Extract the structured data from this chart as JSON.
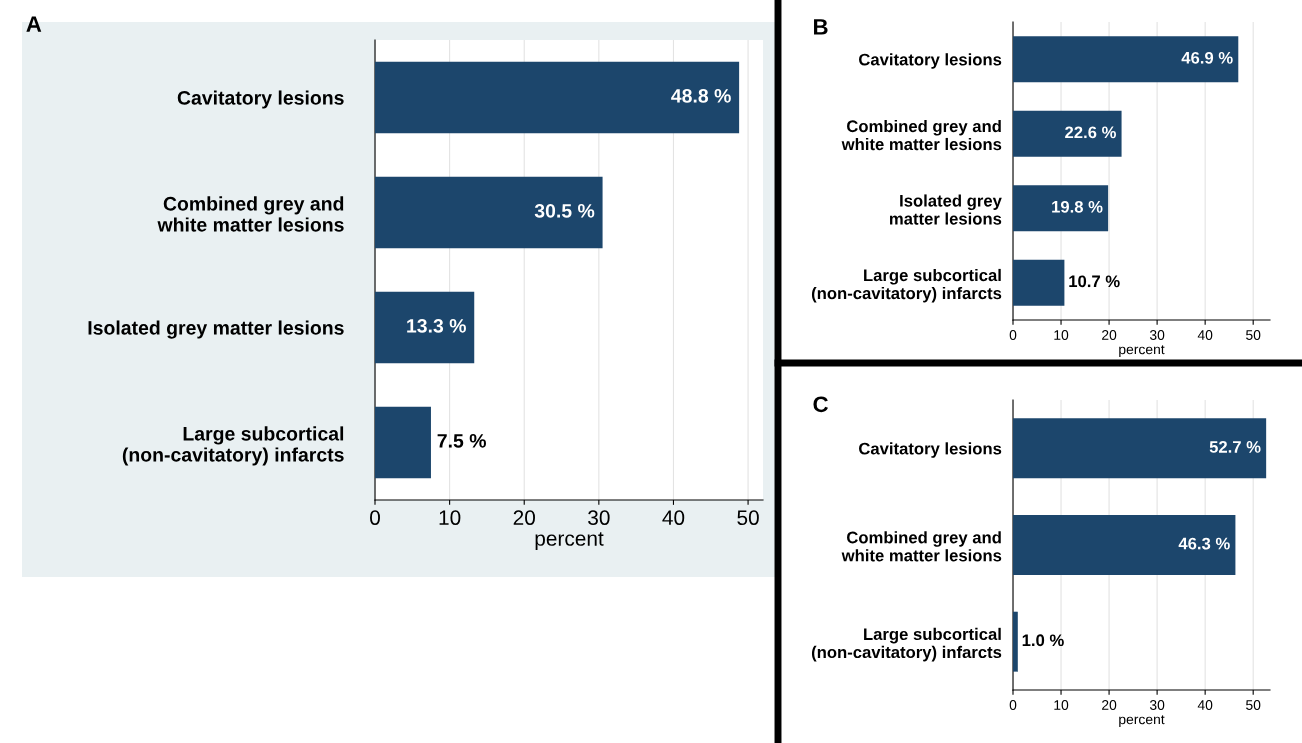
{
  "chart_data": [
    {
      "type": "bar",
      "orientation": "horizontal",
      "title": "A",
      "xlabel": "percent",
      "categories": [
        "Cavitatory lesions",
        "Combined grey and\nwhite matter lesions",
        "Isolated grey matter lesions",
        "Large subcortical\n(non-cavitatory) infarcts"
      ],
      "values": [
        48.8,
        30.5,
        13.3,
        7.5
      ],
      "value_labels": [
        "48.8 %",
        "30.5 %",
        "13.3 %",
        "7.5 %"
      ],
      "color": "#1c466c",
      "xlim": [
        0,
        52
      ],
      "xticks": [
        0,
        10,
        20,
        30,
        40,
        50
      ],
      "grid": "x"
    },
    {
      "type": "bar",
      "orientation": "horizontal",
      "title": "B",
      "xlabel": "percent",
      "categories": [
        "Cavitatory lesions",
        "Combined grey and\nwhite matter lesions",
        "Isolated grey\nmatter lesions",
        "Large subcortical\n(non-cavitatory) infarcts"
      ],
      "values": [
        46.9,
        22.6,
        19.8,
        10.7
      ],
      "value_labels": [
        "46.9 %",
        "22.6 %",
        "19.8 %",
        "10.7 %"
      ],
      "color": "#1c466c",
      "xlim": [
        0,
        53.5
      ],
      "xticks": [
        0,
        10,
        20,
        30,
        40,
        50
      ],
      "grid": "x"
    },
    {
      "type": "bar",
      "orientation": "horizontal",
      "title": "C",
      "xlabel": "percent",
      "categories": [
        "Cavitatory lesions",
        "Combined grey and\nwhite matter lesions",
        "Large subcortical\n(non-cavitatory) infarcts"
      ],
      "values": [
        52.7,
        46.3,
        1.0
      ],
      "value_labels": [
        "52.7 %",
        "46.3 %",
        "1.0 %"
      ],
      "color": "#1c466c",
      "xlim": [
        0,
        53.5
      ],
      "xticks": [
        0,
        10,
        20,
        30,
        40,
        50
      ],
      "grid": "x"
    }
  ]
}
